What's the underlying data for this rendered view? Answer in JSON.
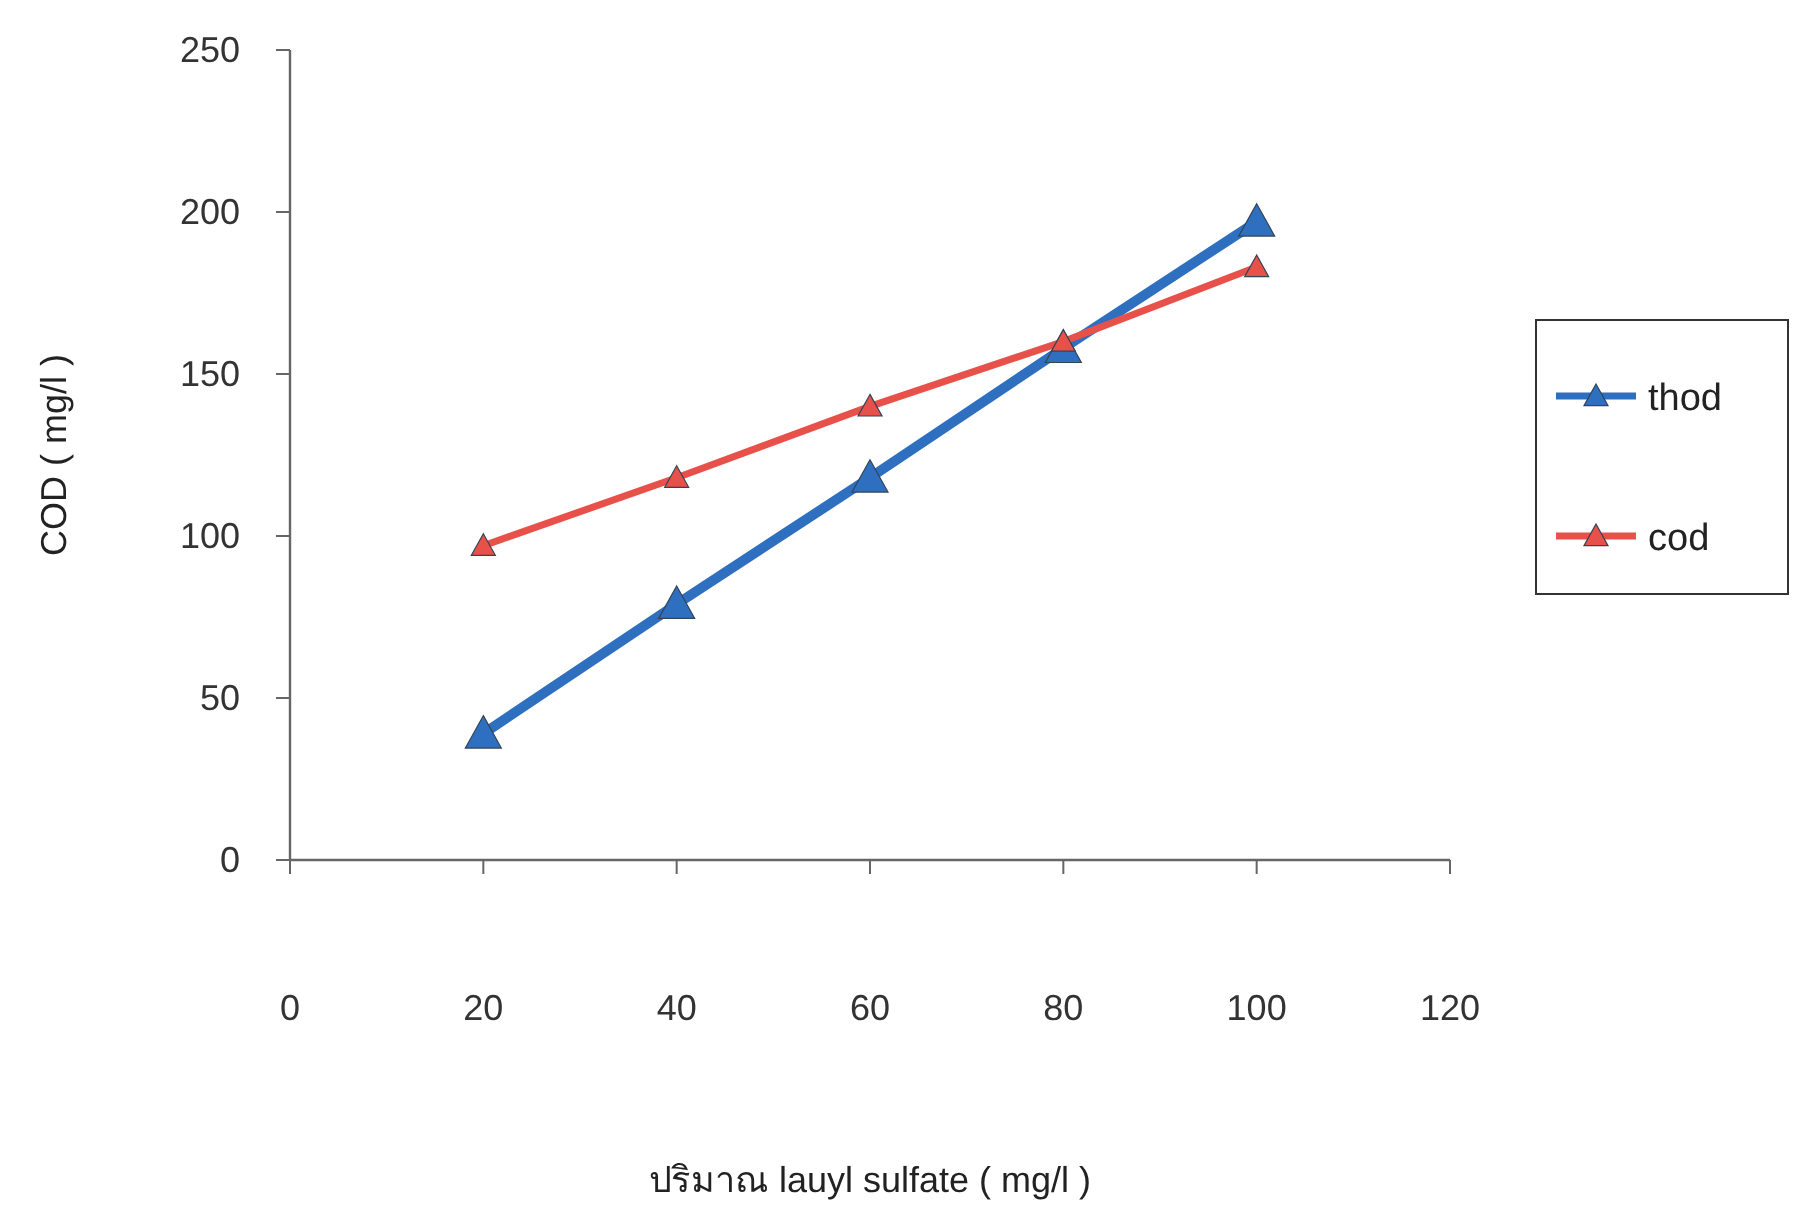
{
  "chart_data": {
    "type": "line",
    "xlabel": "ปริมาณ lauyl sulfate ( mg/l )",
    "ylabel": "COD ( mg/l )",
    "x": [
      20,
      40,
      60,
      80,
      100
    ],
    "series": [
      {
        "name": "thod",
        "color": "#2f6fc0",
        "values": [
          39,
          79,
          118,
          158,
          197
        ]
      },
      {
        "name": "cod",
        "color": "#e8504a",
        "values": [
          97,
          118,
          140,
          160,
          183
        ]
      }
    ],
    "xlim": [
      0,
      120
    ],
    "xticks": [
      0,
      20,
      40,
      60,
      80,
      100,
      120
    ],
    "ylim": [
      0,
      250
    ],
    "yticks": [
      0,
      50,
      100,
      150,
      200,
      250
    ],
    "marker": "triangle",
    "legend": "right",
    "grid": false
  }
}
